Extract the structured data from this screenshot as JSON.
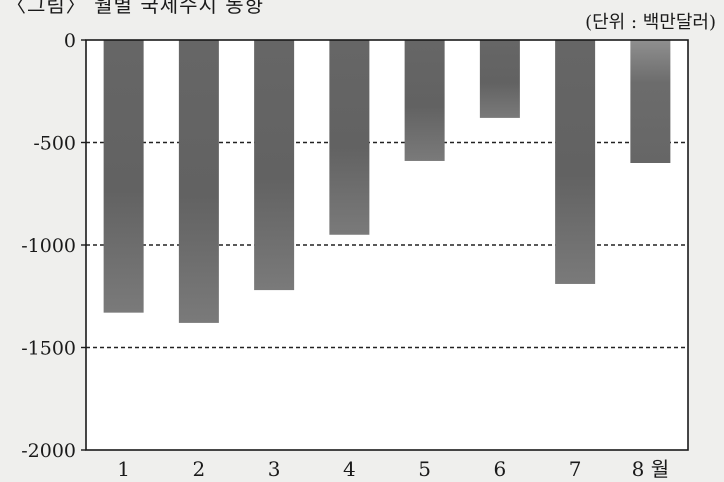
{
  "chart_data": {
    "type": "bar",
    "title": "〈그림〉 월별 국제수지 동향",
    "unit_label": "(단위 : 백만달러)",
    "categories": [
      "1",
      "2",
      "3",
      "4",
      "5",
      "6",
      "7",
      "8 월"
    ],
    "values": [
      -1330,
      -1380,
      -1220,
      -950,
      -590,
      -380,
      -1190,
      -600
    ],
    "ylim": [
      -2000,
      0
    ],
    "yticks": [
      0,
      -500,
      -1000,
      -1500,
      -2000
    ],
    "ytick_labels": [
      "0",
      "-500",
      "-1000",
      "-1500",
      "-2000"
    ],
    "gridlines": [
      -500,
      -1000,
      -1500
    ],
    "grid": "dashed-horizontal",
    "legend": "none",
    "colors": {
      "bar": "#6e6e6e",
      "bar_dark": "#5d5d5d",
      "bar_light": "#8a8a8a",
      "plot_bg": "#ffffff",
      "axis": "#1a1a1a"
    }
  }
}
